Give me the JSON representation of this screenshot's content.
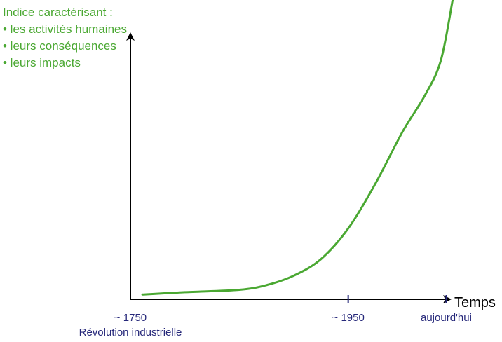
{
  "chart_data": {
    "type": "line",
    "ylabel": [
      "Indice caractérisant :",
      "• les activités humaines",
      "• leurs conséquences",
      "• leurs impacts"
    ],
    "xlabel": "Temps",
    "x_ticks": [
      {
        "value": 1750,
        "label": "~ 1750",
        "sublabel": "Révolution industrielle"
      },
      {
        "value": 1950,
        "label": "~ 1950"
      },
      {
        "value": 2040,
        "label": "aujourd'hui"
      }
    ],
    "xlim": [
      1750,
      2050
    ],
    "ylim": [
      0,
      100
    ],
    "grid": false,
    "series": [
      {
        "color": "#4aa832",
        "x": [
          1761,
          1800,
          1850,
          1875,
          1900,
          1925,
          1950,
          1975,
          2000,
          2020,
          2035,
          2046
        ],
        "y": [
          2,
          3,
          4,
          6,
          10,
          17,
          30,
          49,
          71,
          86,
          101,
          127
        ]
      }
    ]
  },
  "colors": {
    "curve": "#4aa832",
    "ylabel_text": "#4aa832",
    "tick_text": "#26287a",
    "axis": "#000000",
    "tick_marks": "#26287a"
  }
}
